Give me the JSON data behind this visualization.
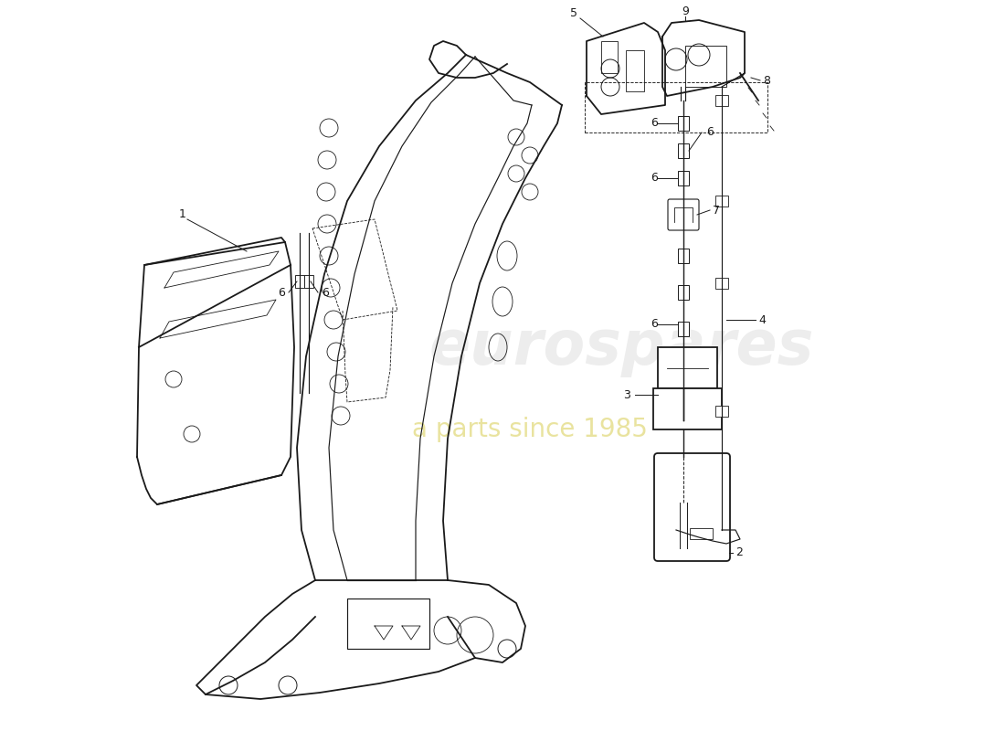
{
  "bg_color": "#ffffff",
  "line_color": "#1a1a1a",
  "lw_main": 1.4,
  "lw_thin": 0.9,
  "lw_extra": 0.6,
  "fig_w": 11.0,
  "fig_h": 8.0,
  "dpi": 100,
  "xlim": [
    0,
    11
  ],
  "ylim": [
    0,
    8
  ],
  "watermark1": "eurospares",
  "watermark2": "a parts since 1985",
  "wm1_x": 6.8,
  "wm1_y": 4.2,
  "wm1_size": 48,
  "wm1_color": "#cccccc",
  "wm1_alpha": 0.35,
  "wm2_x": 5.8,
  "wm2_y": 3.3,
  "wm2_size": 20,
  "wm2_color": "#d4c840",
  "wm2_alpha": 0.5,
  "label_fs": 9
}
